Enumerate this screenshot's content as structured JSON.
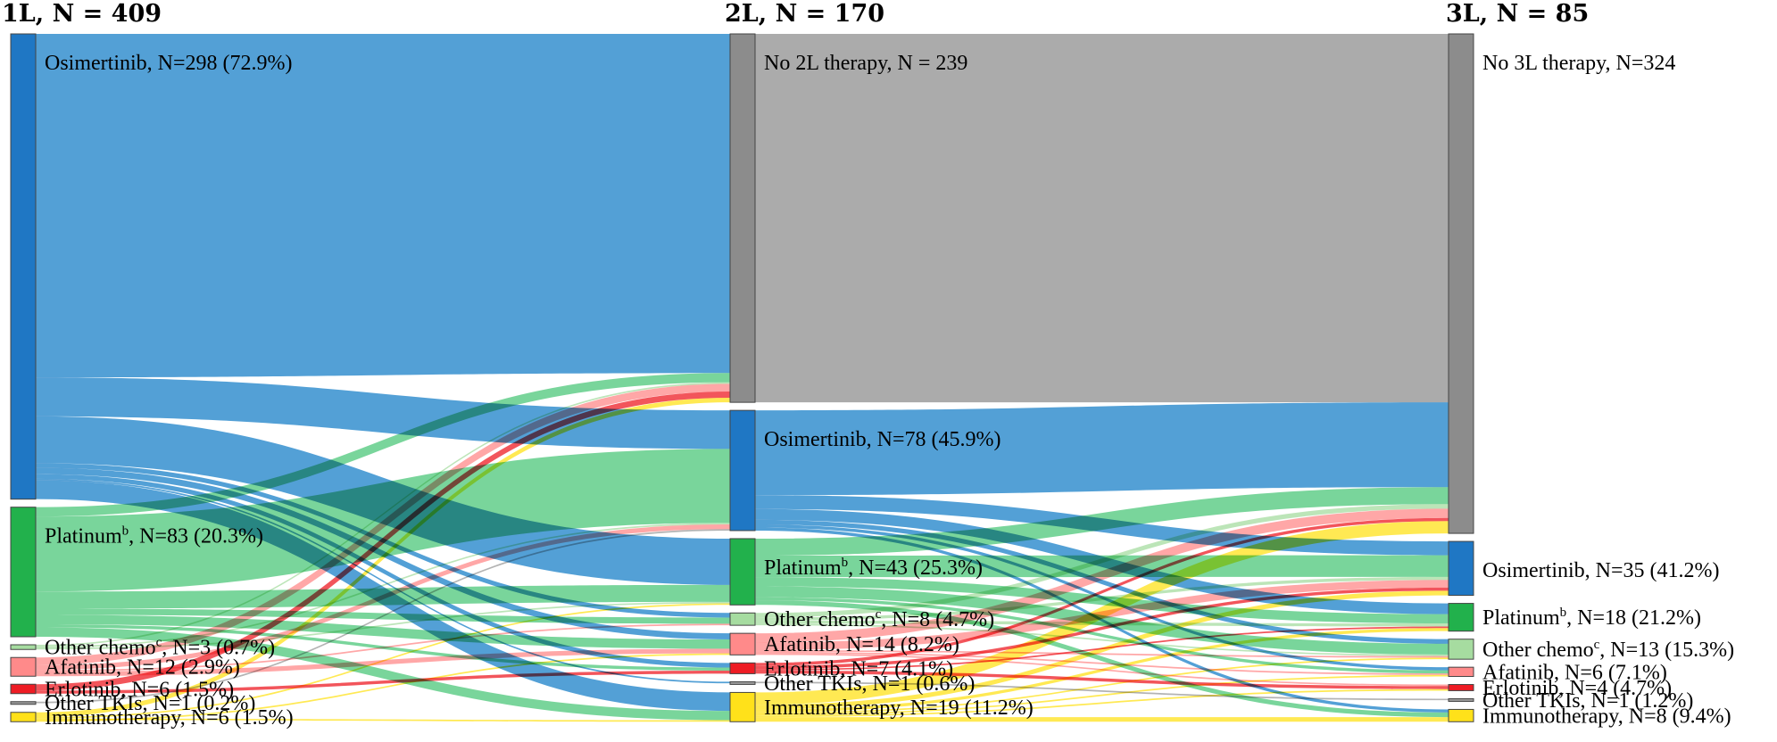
{
  "chart_data": {
    "type": "sankey",
    "title": "",
    "columns": [
      {
        "id": "1L",
        "title": "1L, N = 409",
        "total": 409
      },
      {
        "id": "2L",
        "title": "2L, N = 170",
        "total": 170
      },
      {
        "id": "3L",
        "title": "3L, N = 85",
        "total": 85
      }
    ],
    "colors": {
      "Osimertinib": "#1f77c4",
      "Osimertinib_flow": "#4a9bd4",
      "Platinum": "#22b14c",
      "Platinum_flow": "#4cc77a",
      "Other chemo": "#a6dca0",
      "Afatinib": "#ff8a8a",
      "Erlotinib": "#ee1c24",
      "Other TKIs": "#9a9a9a",
      "Immunotherapy": "#ffe11a",
      "None": "#8c8c8c",
      "None_flow": "#a6a6a6"
    },
    "nodes": [
      {
        "id": "1L-Osimertinib",
        "column": "1L",
        "category": "Osimertinib",
        "value": 298,
        "label": "Osimertinib, N=298 (72.9%)"
      },
      {
        "id": "1L-Platinum",
        "column": "1L",
        "category": "Platinum",
        "value": 83,
        "label_pre": "Platinum",
        "label_sup": "b",
        "label_post": ", N=83 (20.3%)"
      },
      {
        "id": "1L-Other chemo",
        "column": "1L",
        "category": "Other chemo",
        "value": 3,
        "label_pre": "Other chemo",
        "label_sup": "c",
        "label_post": ", N=3 (0.7%)"
      },
      {
        "id": "1L-Afatinib",
        "column": "1L",
        "category": "Afatinib",
        "value": 12,
        "label": "Afatinib, N=12 (2.9%)"
      },
      {
        "id": "1L-Erlotinib",
        "column": "1L",
        "category": "Erlotinib",
        "value": 6,
        "label": "Erlotinib, N=6 (1.5%)"
      },
      {
        "id": "1L-Other TKIs",
        "column": "1L",
        "category": "Other TKIs",
        "value": 1,
        "label": "Other TKIs, N=1 (0.2%)"
      },
      {
        "id": "1L-Immunotherapy",
        "column": "1L",
        "category": "Immunotherapy",
        "value": 6,
        "label": "Immunotherapy, N=6 (1.5%)"
      },
      {
        "id": "2L-None",
        "column": "2L",
        "category": "None",
        "value": 239,
        "label": "No 2L therapy, N = 239"
      },
      {
        "id": "2L-Osimertinib",
        "column": "2L",
        "category": "Osimertinib",
        "value": 78,
        "label": "Osimertinib, N=78 (45.9%)"
      },
      {
        "id": "2L-Platinum",
        "column": "2L",
        "category": "Platinum",
        "value": 43,
        "label_pre": "Platinum",
        "label_sup": "b",
        "label_post": ", N=43 (25.3%)"
      },
      {
        "id": "2L-Other chemo",
        "column": "2L",
        "category": "Other chemo",
        "value": 8,
        "label_pre": "Other chemo",
        "label_sup": "c",
        "label_post": ", N=8 (4.7%)"
      },
      {
        "id": "2L-Afatinib",
        "column": "2L",
        "category": "Afatinib",
        "value": 14,
        "label": "Afatinib, N=14 (8.2%)"
      },
      {
        "id": "2L-Erlotinib",
        "column": "2L",
        "category": "Erlotinib",
        "value": 7,
        "label": "Erlotinib, N=7 (4.1%)"
      },
      {
        "id": "2L-Other TKIs",
        "column": "2L",
        "category": "Other TKIs",
        "value": 1,
        "label": "Other TKIs, N=1 (0.6%)"
      },
      {
        "id": "2L-Immunotherapy",
        "column": "2L",
        "category": "Immunotherapy",
        "value": 19,
        "label": "Immunotherapy, N=19 (11.2%)"
      },
      {
        "id": "3L-None",
        "column": "3L",
        "category": "None",
        "value": 324,
        "label": "No 3L therapy, N=324"
      },
      {
        "id": "3L-Osimertinib",
        "column": "3L",
        "category": "Osimertinib",
        "value": 35,
        "label": "Osimertinib, N=35 (41.2%)"
      },
      {
        "id": "3L-Platinum",
        "column": "3L",
        "category": "Platinum",
        "value": 18,
        "label_pre": "Platinum",
        "label_sup": "b",
        "label_post": ", N=18 (21.2%)"
      },
      {
        "id": "3L-Other chemo",
        "column": "3L",
        "category": "Other chemo",
        "value": 13,
        "label_pre": "Other chemo",
        "label_sup": "c",
        "label_post": ", N=13 (15.3%)"
      },
      {
        "id": "3L-Afatinib",
        "column": "3L",
        "category": "Afatinib",
        "value": 6,
        "label": "Afatinib, N=6 (7.1%)"
      },
      {
        "id": "3L-Erlotinib",
        "column": "3L",
        "category": "Erlotinib",
        "value": 4,
        "label": "Erlotinib, N=4 (4.7%)"
      },
      {
        "id": "3L-Other TKIs",
        "column": "3L",
        "category": "Other TKIs",
        "value": 1,
        "label": "Other TKIs, N=1 (1.2%)"
      },
      {
        "id": "3L-Immunotherapy",
        "column": "3L",
        "category": "Immunotherapy",
        "value": 8,
        "label": "Immunotherapy, N=8 (9.4%)"
      }
    ],
    "links": [
      {
        "source": "1L-Osimertinib",
        "target": "2L-None",
        "value": 220
      },
      {
        "source": "1L-Osimertinib",
        "target": "2L-Osimertinib",
        "value": 25
      },
      {
        "source": "1L-Osimertinib",
        "target": "2L-Platinum",
        "value": 30
      },
      {
        "source": "1L-Osimertinib",
        "target": "2L-Other chemo",
        "value": 3
      },
      {
        "source": "1L-Osimertinib",
        "target": "2L-Afatinib",
        "value": 4
      },
      {
        "source": "1L-Osimertinib",
        "target": "2L-Erlotinib",
        "value": 3
      },
      {
        "source": "1L-Osimertinib",
        "target": "2L-Other TKIs",
        "value": 1
      },
      {
        "source": "1L-Osimertinib",
        "target": "2L-Immunotherapy",
        "value": 12
      },
      {
        "source": "1L-Platinum",
        "target": "2L-None",
        "value": 6
      },
      {
        "source": "1L-Platinum",
        "target": "2L-Osimertinib",
        "value": 48
      },
      {
        "source": "1L-Platinum",
        "target": "2L-Platinum",
        "value": 11
      },
      {
        "source": "1L-Platinum",
        "target": "2L-Other chemo",
        "value": 4
      },
      {
        "source": "1L-Platinum",
        "target": "2L-Afatinib",
        "value": 6
      },
      {
        "source": "1L-Platinum",
        "target": "2L-Erlotinib",
        "value": 2
      },
      {
        "source": "1L-Platinum",
        "target": "2L-Immunotherapy",
        "value": 6
      },
      {
        "source": "1L-Other chemo",
        "target": "2L-None",
        "value": 1
      },
      {
        "source": "1L-Other chemo",
        "target": "2L-Osimertinib",
        "value": 1
      },
      {
        "source": "1L-Other chemo",
        "target": "2L-Platinum",
        "value": 1
      },
      {
        "source": "1L-Afatinib",
        "target": "2L-None",
        "value": 5
      },
      {
        "source": "1L-Afatinib",
        "target": "2L-Osimertinib",
        "value": 3
      },
      {
        "source": "1L-Afatinib",
        "target": "2L-Other chemo",
        "value": 1
      },
      {
        "source": "1L-Afatinib",
        "target": "2L-Afatinib",
        "value": 3
      },
      {
        "source": "1L-Erlotinib",
        "target": "2L-None",
        "value": 4
      },
      {
        "source": "1L-Erlotinib",
        "target": "2L-Erlotinib",
        "value": 2
      },
      {
        "source": "1L-Other TKIs",
        "target": "2L-Osimertinib",
        "value": 1
      },
      {
        "source": "1L-Immunotherapy",
        "target": "2L-None",
        "value": 3
      },
      {
        "source": "1L-Immunotherapy",
        "target": "2L-Platinum",
        "value": 1
      },
      {
        "source": "1L-Afatinib",
        "target": "2L-Immunotherapy",
        "value": 0
      },
      {
        "source": "1L-Immunotherapy",
        "target": "2L-Immunotherapy",
        "value": 1
      },
      {
        "source": "1L-Immunotherapy",
        "target": "2L-Afatinib",
        "value": 1
      },
      {
        "source": "2L-None",
        "target": "3L-None",
        "value": 239
      },
      {
        "source": "2L-Osimertinib",
        "target": "3L-None",
        "value": 55
      },
      {
        "source": "2L-Osimertinib",
        "target": "3L-Osimertinib",
        "value": 9
      },
      {
        "source": "2L-Osimertinib",
        "target": "3L-Platinum",
        "value": 7
      },
      {
        "source": "2L-Osimertinib",
        "target": "3L-Other chemo",
        "value": 3
      },
      {
        "source": "2L-Osimertinib",
        "target": "3L-Afatinib",
        "value": 2
      },
      {
        "source": "2L-Osimertinib",
        "target": "3L-Immunotherapy",
        "value": 2
      },
      {
        "source": "2L-Platinum",
        "target": "3L-None",
        "value": 11
      },
      {
        "source": "2L-Platinum",
        "target": "3L-Osimertinib",
        "value": 14
      },
      {
        "source": "2L-Platinum",
        "target": "3L-Platinum",
        "value": 6
      },
      {
        "source": "2L-Platinum",
        "target": "3L-Other chemo",
        "value": 7
      },
      {
        "source": "2L-Platinum",
        "target": "3L-Afatinib",
        "value": 2
      },
      {
        "source": "2L-Platinum",
        "target": "3L-Immunotherapy",
        "value": 3
      },
      {
        "source": "2L-Other chemo",
        "target": "3L-None",
        "value": 3
      },
      {
        "source": "2L-Other chemo",
        "target": "3L-Osimertinib",
        "value": 2
      },
      {
        "source": "2L-Other chemo",
        "target": "3L-Platinum",
        "value": 2
      },
      {
        "source": "2L-Other chemo",
        "target": "3L-Other chemo",
        "value": 1
      },
      {
        "source": "2L-Afatinib",
        "target": "3L-None",
        "value": 6
      },
      {
        "source": "2L-Afatinib",
        "target": "3L-Osimertinib",
        "value": 5
      },
      {
        "source": "2L-Afatinib",
        "target": "3L-Other chemo",
        "value": 1
      },
      {
        "source": "2L-Afatinib",
        "target": "3L-Afatinib",
        "value": 1
      },
      {
        "source": "2L-Afatinib",
        "target": "3L-Erlotinib",
        "value": 1
      },
      {
        "source": "2L-Erlotinib",
        "target": "3L-None",
        "value": 2
      },
      {
        "source": "2L-Erlotinib",
        "target": "3L-Osimertinib",
        "value": 2
      },
      {
        "source": "2L-Erlotinib",
        "target": "3L-Platinum",
        "value": 1
      },
      {
        "source": "2L-Erlotinib",
        "target": "3L-Erlotinib",
        "value": 2
      },
      {
        "source": "2L-Other TKIs",
        "target": "3L-Other TKIs",
        "value": 1
      },
      {
        "source": "2L-Immunotherapy",
        "target": "3L-None",
        "value": 8
      },
      {
        "source": "2L-Immunotherapy",
        "target": "3L-Osimertinib",
        "value": 3
      },
      {
        "source": "2L-Immunotherapy",
        "target": "3L-Platinum",
        "value": 2
      },
      {
        "source": "2L-Immunotherapy",
        "target": "3L-Other chemo",
        "value": 1
      },
      {
        "source": "2L-Immunotherapy",
        "target": "3L-Afatinib",
        "value": 1
      },
      {
        "source": "2L-Immunotherapy",
        "target": "3L-Erlotinib",
        "value": 1
      },
      {
        "source": "2L-Immunotherapy",
        "target": "3L-Immunotherapy",
        "value": 3
      }
    ]
  }
}
